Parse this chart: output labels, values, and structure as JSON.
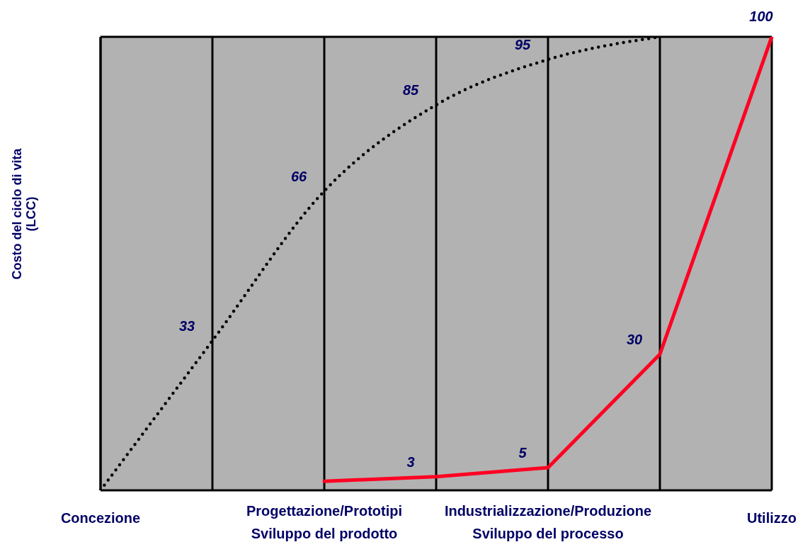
{
  "chart_data": {
    "type": "line",
    "ylabel": "Costo del ciclo di vita\n(LCC)",
    "ylim": [
      0,
      100
    ],
    "tick_labels": "x",
    "grid": "x",
    "categories": [
      "Concezione",
      null,
      "Progettazione/Prototipi\nSviluppo del prodotto",
      null,
      "Industrializzazione/Produzione\nSviluppo del processo",
      null,
      "Utilizzo"
    ],
    "series": [
      {
        "color": "#000000",
        "line_style": "dotted",
        "values": [
          0,
          33,
          66,
          85,
          95,
          100,
          null
        ],
        "value_labels": [
          null,
          "33",
          "66",
          "85",
          "95",
          null,
          null
        ]
      },
      {
        "color": "#ff0022",
        "line_style": "solid",
        "values": [
          null,
          null,
          2,
          3,
          5,
          30,
          100
        ],
        "value_labels": [
          null,
          null,
          null,
          "3",
          "5",
          "30",
          "100"
        ]
      }
    ]
  }
}
